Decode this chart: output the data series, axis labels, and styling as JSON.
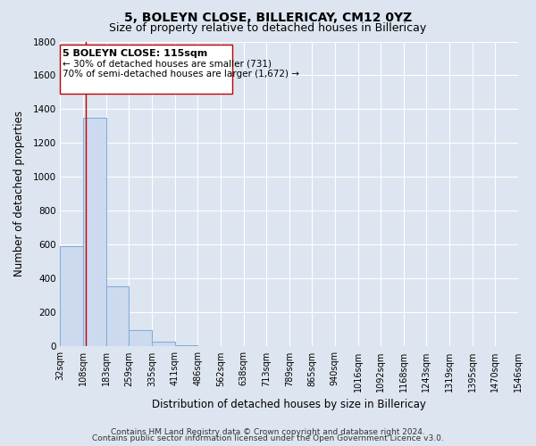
{
  "title_line1": "5, BOLEYN CLOSE, BILLERICAY, CM12 0YZ",
  "title_line2": "Size of property relative to detached houses in Billericay",
  "xlabel": "Distribution of detached houses by size in Billericay",
  "ylabel": "Number of detached properties",
  "bar_bins": [
    32,
    108,
    183,
    259,
    335,
    411,
    486,
    562,
    638,
    713,
    789,
    865,
    940,
    1016,
    1092,
    1168,
    1243,
    1319,
    1395,
    1470,
    1546
  ],
  "bar_heights": [
    590,
    1350,
    355,
    95,
    30,
    10,
    0,
    0,
    0,
    0,
    0,
    0,
    0,
    0,
    0,
    0,
    0,
    0,
    0,
    0
  ],
  "bar_color": "#ccd9ee",
  "bar_edgecolor": "#7aadda",
  "ylim": [
    0,
    1800
  ],
  "yticks": [
    0,
    200,
    400,
    600,
    800,
    1000,
    1200,
    1400,
    1600,
    1800
  ],
  "property_line_x": 115,
  "property_line_color": "#c00000",
  "ann_line1": "5 BOLEYN CLOSE: 115sqm",
  "ann_line2": "← 30% of detached houses are smaller (731)",
  "ann_line3": "70% of semi-detached houses are larger (1,672) →",
  "annotation_box_edgecolor": "#c00000",
  "annotation_box_facecolor": "#ffffff",
  "footer_line1": "Contains HM Land Registry data © Crown copyright and database right 2024.",
  "footer_line2": "Contains public sector information licensed under the Open Government Licence v3.0.",
  "background_color": "#dde5f0",
  "plot_bg_color": "#dde5f0",
  "grid_color": "#ffffff",
  "title_fontsize": 10,
  "subtitle_fontsize": 9,
  "tick_label_fontsize": 7,
  "axis_label_fontsize": 8.5,
  "footer_fontsize": 6.5,
  "ann_fontsize_title": 8,
  "ann_fontsize_body": 7.5
}
